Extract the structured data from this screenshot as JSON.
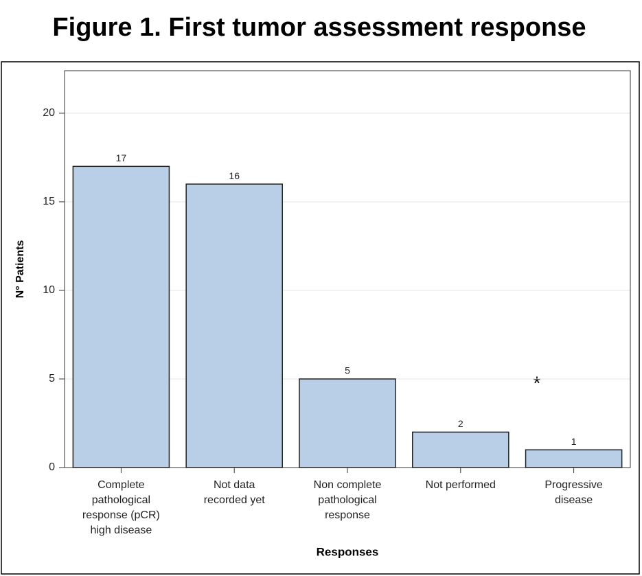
{
  "chart_data": {
    "type": "bar",
    "title": "Figure 1. First tumor assessment response",
    "categories": [
      "Complete\npathological\nresponse (pCR)\nhigh disease",
      "Not data\nrecorded yet",
      "Non complete\npathological\nresponse",
      "Not performed",
      "Progressive\ndisease"
    ],
    "values": [
      17,
      16,
      5,
      2,
      1
    ],
    "color": "#b9cfe8",
    "ylim": [
      0,
      22.4
    ],
    "yticks": [
      0,
      5,
      10,
      15,
      20
    ],
    "grid": true,
    "x_label": "Responses",
    "y_label": "N° Patients",
    "annotation": "*"
  }
}
